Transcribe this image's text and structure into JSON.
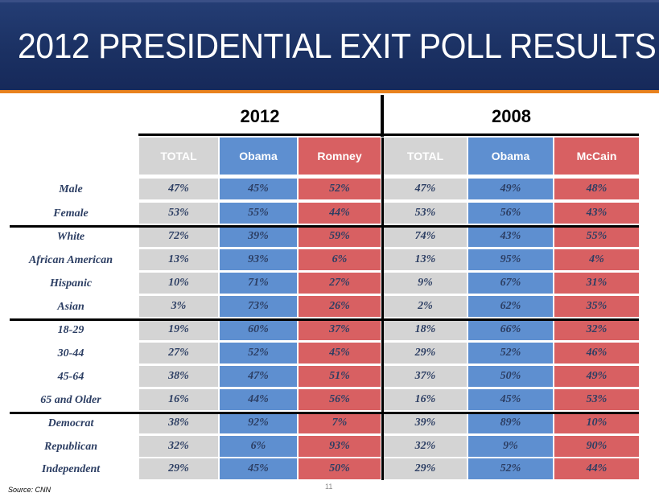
{
  "title": "2012 PRESIDENTIAL EXIT POLL RESULTS",
  "years": [
    "2012",
    "2008"
  ],
  "headers": {
    "y2012": [
      "TOTAL",
      "Obama",
      "Romney"
    ],
    "y2008": [
      "TOTAL",
      "Obama",
      "McCain"
    ]
  },
  "colors": {
    "total": "#d4d4d4",
    "dem": "#5e8fd0",
    "rep": "#d86062",
    "banner": "#1b3163",
    "accent": "#e8821e"
  },
  "rows": [
    {
      "label": "Male",
      "v": [
        "47%",
        "45%",
        "52%",
        "47%",
        "49%",
        "48%"
      ]
    },
    {
      "label": "Female",
      "v": [
        "53%",
        "55%",
        "44%",
        "53%",
        "56%",
        "43%"
      ]
    },
    {
      "label": "White",
      "v": [
        "72%",
        "39%",
        "59%",
        "74%",
        "43%",
        "55%"
      ]
    },
    {
      "label": "African American",
      "v": [
        "13%",
        "93%",
        "6%",
        "13%",
        "95%",
        "4%"
      ]
    },
    {
      "label": "Hispanic",
      "v": [
        "10%",
        "71%",
        "27%",
        "9%",
        "67%",
        "31%"
      ]
    },
    {
      "label": "Asian",
      "v": [
        "3%",
        "73%",
        "26%",
        "2%",
        "62%",
        "35%"
      ]
    },
    {
      "label": "18-29",
      "v": [
        "19%",
        "60%",
        "37%",
        "18%",
        "66%",
        "32%"
      ]
    },
    {
      "label": "30-44",
      "v": [
        "27%",
        "52%",
        "45%",
        "29%",
        "52%",
        "46%"
      ]
    },
    {
      "label": "45-64",
      "v": [
        "38%",
        "47%",
        "51%",
        "37%",
        "50%",
        "49%"
      ]
    },
    {
      "label": "65 and Older",
      "v": [
        "16%",
        "44%",
        "56%",
        "16%",
        "45%",
        "53%"
      ]
    },
    {
      "label": "Democrat",
      "v": [
        "38%",
        "92%",
        "7%",
        "39%",
        "89%",
        "10%"
      ]
    },
    {
      "label": "Republican",
      "v": [
        "32%",
        "6%",
        "93%",
        "32%",
        "9%",
        "90%"
      ]
    },
    {
      "label": "Independent",
      "v": [
        "29%",
        "45%",
        "50%",
        "29%",
        "52%",
        "44%"
      ]
    }
  ],
  "footer": {
    "source": "Source: CNN",
    "page": "11"
  }
}
